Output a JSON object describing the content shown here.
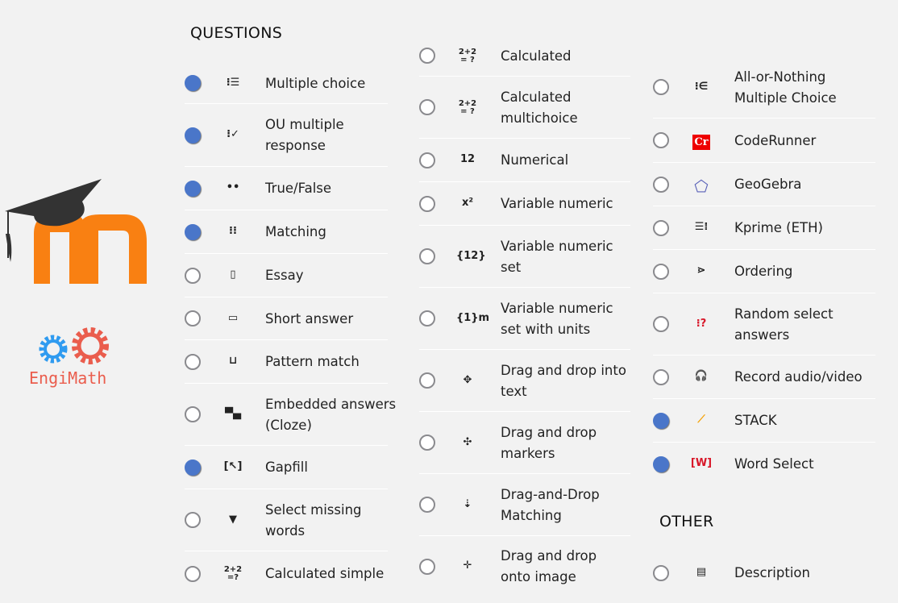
{
  "logos": {
    "moodle": "m",
    "engimath": "EngiMath"
  },
  "colors": {
    "selected": "#4a76c9",
    "moodle_orange": "#f98012",
    "gear_blue": "#2f9bf0",
    "gear_red": "#ea5d4d"
  },
  "questions_header": "QUESTIONS",
  "other_header": "OTHER",
  "columns": [
    [
      {
        "label": "Multiple choice",
        "icon": "list-icon",
        "glyph": "⁝☰",
        "selected": true
      },
      {
        "label": "OU multiple\nresponse",
        "icon": "checklist-icon",
        "glyph": "⁝✓",
        "selected": true
      },
      {
        "label": "True/False",
        "icon": "two-dots-icon",
        "glyph": "••",
        "selected": true
      },
      {
        "label": "Matching",
        "icon": "matching-icon",
        "glyph": "⁝⁝",
        "selected": true
      },
      {
        "label": "Essay",
        "icon": "document-icon",
        "glyph": "▯",
        "selected": false
      },
      {
        "label": "Short answer",
        "icon": "textbox-icon",
        "glyph": "▭",
        "selected": false
      },
      {
        "label": "Pattern match",
        "icon": "pattern-icon",
        "glyph": "⊔",
        "selected": false
      },
      {
        "label": "Embedded answers\n(Cloze)",
        "icon": "cloze-icon",
        "glyph": "▀▄",
        "selected": false
      },
      {
        "label": "Gapfill",
        "icon": "gapfill-icon",
        "glyph": "[↖]",
        "selected": true
      },
      {
        "label": "Select missing\nwords",
        "icon": "triangle-down-icon",
        "glyph": "▼",
        "selected": false
      },
      {
        "label": "Calculated simple",
        "icon": "calc-simple-icon",
        "glyph": "2+2\n=?",
        "selected": false
      }
    ],
    [
      {
        "label": "Calculated",
        "icon": "calculated-icon",
        "glyph": "2+2\n= ?",
        "selected": false
      },
      {
        "label": "Calculated\nmultichoice",
        "icon": "calc-multi-icon",
        "glyph": "2+2\n= ?",
        "selected": false
      },
      {
        "label": "Numerical",
        "icon": "numerical-icon",
        "glyph": "12",
        "selected": false
      },
      {
        "label": "Variable numeric",
        "icon": "variable-numeric-icon",
        "glyph": "x²",
        "selected": false
      },
      {
        "label": "Variable numeric\nset",
        "icon": "variable-set-icon",
        "glyph": "{12}",
        "selected": false
      },
      {
        "label": "Variable numeric\nset with units",
        "icon": "variable-units-icon",
        "glyph": "{1}m",
        "selected": false
      },
      {
        "label": "Drag and drop into\ntext",
        "icon": "drag-text-icon",
        "glyph": "✥",
        "selected": false
      },
      {
        "label": "Drag and drop\nmarkers",
        "icon": "drag-markers-icon",
        "glyph": "✣",
        "selected": false
      },
      {
        "label": "Drag-and-Drop\nMatching",
        "icon": "drag-matching-icon",
        "glyph": "⇣",
        "selected": false
      },
      {
        "label": "Drag and drop\nonto image",
        "icon": "drag-image-icon",
        "glyph": "✛",
        "selected": false
      }
    ],
    [
      {
        "label": "All-or-Nothing\nMultiple Choice",
        "icon": "all-or-nothing-icon",
        "glyph": "⁝∈",
        "selected": false
      },
      {
        "label": "CodeRunner",
        "icon": "coderunner-icon",
        "glyph": "Cr",
        "selected": false
      },
      {
        "label": "GeoGebra",
        "icon": "geogebra-icon",
        "glyph": "⬠",
        "selected": false
      },
      {
        "label": "Kprime (ETH)",
        "icon": "kprime-icon",
        "glyph": "☰⁞",
        "selected": false
      },
      {
        "label": "Ordering",
        "icon": "ordering-icon",
        "glyph": "⋗",
        "selected": false
      },
      {
        "label": "Random select\nanswers",
        "icon": "random-select-icon",
        "glyph": "⁝?",
        "selected": false
      },
      {
        "label": "Record audio/video",
        "icon": "headset-icon",
        "glyph": "🎧",
        "selected": false
      },
      {
        "label": "STACK",
        "icon": "stack-icon",
        "glyph": "⟋",
        "selected": true
      },
      {
        "label": "Word Select",
        "icon": "word-select-icon",
        "glyph": "[W]",
        "selected": true
      }
    ]
  ],
  "other": [
    {
      "label": "Description",
      "icon": "description-icon",
      "glyph": "▤",
      "selected": false
    }
  ]
}
